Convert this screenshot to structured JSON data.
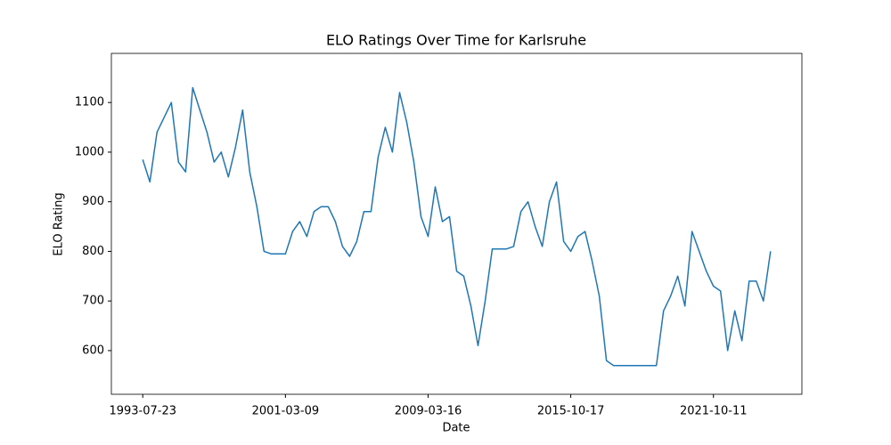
{
  "chart_data": {
    "type": "line",
    "title": "ELO Ratings Over Time for Karlsruhe",
    "x_label": "Date",
    "y_label": "ELO Rating",
    "categories": [
      "1993-07-23",
      null,
      null,
      null,
      null,
      null,
      null,
      null,
      null,
      null,
      null,
      null,
      null,
      null,
      null,
      null,
      null,
      null,
      null,
      null,
      "2001-03-09",
      null,
      null,
      null,
      null,
      null,
      null,
      null,
      null,
      null,
      null,
      null,
      null,
      null,
      null,
      null,
      null,
      null,
      null,
      null,
      "2009-03-16",
      null,
      null,
      null,
      null,
      null,
      null,
      null,
      null,
      null,
      null,
      null,
      null,
      null,
      null,
      null,
      null,
      null,
      null,
      null,
      "2015-10-17",
      null,
      null,
      null,
      null,
      null,
      null,
      null,
      null,
      null,
      null,
      null,
      null,
      null,
      null,
      null,
      null,
      null,
      null,
      null,
      "2021-10-11",
      null,
      null,
      null,
      null,
      null,
      null,
      null,
      null
    ],
    "series": [
      {
        "name": "Karlsruhe",
        "color": "#1f77b4",
        "values": [
          985,
          940,
          1040,
          1070,
          1100,
          980,
          960,
          1130,
          1085,
          1040,
          980,
          1000,
          950,
          1010,
          1085,
          960,
          890,
          800,
          795,
          795,
          795,
          840,
          860,
          830,
          880,
          890,
          890,
          860,
          810,
          790,
          820,
          880,
          880,
          990,
          1050,
          1000,
          1120,
          1060,
          980,
          870,
          830,
          930,
          860,
          870,
          760,
          750,
          690,
          610,
          700,
          805,
          805,
          805,
          810,
          880,
          900,
          850,
          810,
          900,
          940,
          820,
          800,
          830,
          840,
          780,
          710,
          580,
          570,
          570,
          570,
          570,
          570,
          570,
          570,
          680,
          710,
          750,
          690,
          840,
          800,
          760,
          730,
          720,
          600,
          680,
          620,
          740,
          740,
          700,
          800
        ]
      }
    ],
    "xlim": [
      -4.4,
      92.4
    ],
    "ylim": [
      512,
      1199
    ],
    "yticks": [
      600,
      700,
      800,
      900,
      1000,
      1100
    ]
  }
}
